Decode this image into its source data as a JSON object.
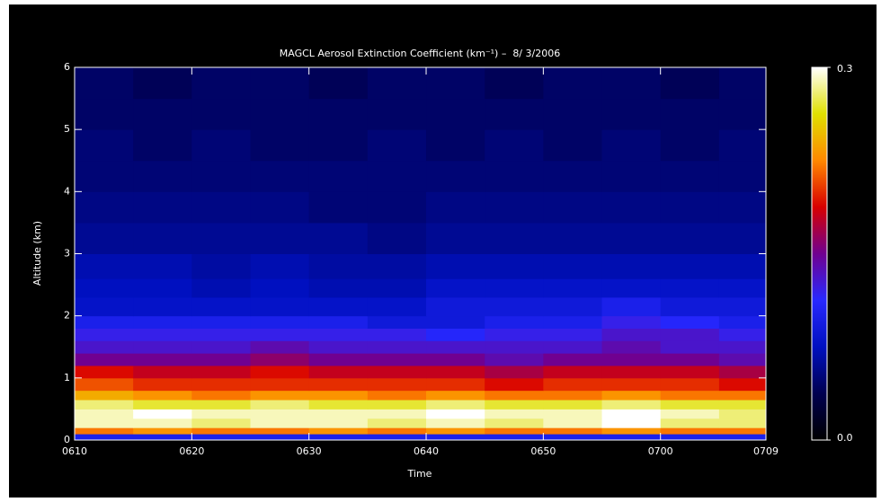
{
  "chart_data": {
    "type": "heatmap",
    "title": "MAGCL Aerosol Extinction Coefficient (km⁻¹) –  8/ 3/2006",
    "x_label": "Time",
    "y_label": "Altitude (km)",
    "xlim": [
      370,
      429
    ],
    "xticks": [
      {
        "value": 370,
        "label": "0610"
      },
      {
        "value": 380,
        "label": "0620"
      },
      {
        "value": 390,
        "label": "0630"
      },
      {
        "value": 400,
        "label": "0640"
      },
      {
        "value": 410,
        "label": "0650"
      },
      {
        "value": 420,
        "label": "0700"
      },
      {
        "value": 429,
        "label": "0709"
      }
    ],
    "ylim": [
      0,
      6
    ],
    "yticks": [
      0,
      1,
      2,
      3,
      4,
      5,
      6
    ],
    "xbins": [
      370,
      375,
      380,
      385,
      390,
      395,
      400,
      405,
      410,
      415,
      420,
      425,
      429
    ],
    "ybins": [
      0,
      0.1,
      0.2,
      0.35,
      0.5,
      0.65,
      0.8,
      1.0,
      1.2,
      1.4,
      1.6,
      1.8,
      2.0,
      2.3,
      2.6,
      3.0,
      3.5,
      4.0,
      4.5,
      5.0,
      5.5,
      6.0
    ],
    "z": [
      [
        0.1,
        0.1,
        0.1,
        0.1,
        0.1,
        0.1,
        0.1,
        0.1,
        0.1,
        0.1,
        0.1,
        0.1
      ],
      [
        0.22,
        0.23,
        0.22,
        0.22,
        0.23,
        0.22,
        0.23,
        0.22,
        0.22,
        0.23,
        0.22,
        0.22
      ],
      [
        0.29,
        0.29,
        0.28,
        0.29,
        0.29,
        0.28,
        0.29,
        0.28,
        0.29,
        0.3,
        0.28,
        0.28
      ],
      [
        0.29,
        0.3,
        0.29,
        0.29,
        0.29,
        0.29,
        0.3,
        0.29,
        0.29,
        0.3,
        0.29,
        0.28
      ],
      [
        0.28,
        0.27,
        0.27,
        0.28,
        0.27,
        0.27,
        0.28,
        0.27,
        0.27,
        0.28,
        0.27,
        0.27
      ],
      [
        0.24,
        0.23,
        0.22,
        0.23,
        0.23,
        0.22,
        0.23,
        0.22,
        0.22,
        0.23,
        0.22,
        0.22
      ],
      [
        0.21,
        0.2,
        0.2,
        0.2,
        0.2,
        0.2,
        0.2,
        0.19,
        0.2,
        0.2,
        0.2,
        0.19
      ],
      [
        0.19,
        0.18,
        0.18,
        0.19,
        0.18,
        0.18,
        0.18,
        0.17,
        0.18,
        0.18,
        0.18,
        0.17
      ],
      [
        0.15,
        0.15,
        0.15,
        0.16,
        0.15,
        0.15,
        0.15,
        0.14,
        0.15,
        0.15,
        0.15,
        0.14
      ],
      [
        0.13,
        0.13,
        0.13,
        0.14,
        0.13,
        0.13,
        0.13,
        0.13,
        0.13,
        0.14,
        0.13,
        0.13
      ],
      [
        0.12,
        0.12,
        0.12,
        0.12,
        0.12,
        0.12,
        0.11,
        0.12,
        0.12,
        0.13,
        0.13,
        0.12
      ],
      [
        0.1,
        0.1,
        0.1,
        0.1,
        0.1,
        0.09,
        0.09,
        0.1,
        0.1,
        0.12,
        0.11,
        0.1
      ],
      [
        0.08,
        0.08,
        0.08,
        0.08,
        0.08,
        0.08,
        0.09,
        0.09,
        0.09,
        0.1,
        0.09,
        0.09
      ],
      [
        0.075,
        0.075,
        0.07,
        0.075,
        0.07,
        0.07,
        0.08,
        0.08,
        0.08,
        0.08,
        0.08,
        0.08
      ],
      [
        0.07,
        0.07,
        0.065,
        0.07,
        0.065,
        0.065,
        0.07,
        0.07,
        0.07,
        0.07,
        0.07,
        0.07
      ],
      [
        0.06,
        0.06,
        0.06,
        0.06,
        0.06,
        0.055,
        0.06,
        0.06,
        0.06,
        0.06,
        0.06,
        0.06
      ],
      [
        0.055,
        0.055,
        0.055,
        0.055,
        0.05,
        0.05,
        0.055,
        0.055,
        0.055,
        0.055,
        0.055,
        0.055
      ],
      [
        0.05,
        0.05,
        0.05,
        0.05,
        0.05,
        0.05,
        0.05,
        0.05,
        0.05,
        0.05,
        0.05,
        0.05
      ],
      [
        0.05,
        0.045,
        0.05,
        0.045,
        0.045,
        0.05,
        0.045,
        0.05,
        0.045,
        0.05,
        0.045,
        0.05
      ],
      [
        0.045,
        0.045,
        0.045,
        0.045,
        0.045,
        0.045,
        0.045,
        0.045,
        0.045,
        0.045,
        0.045,
        0.045
      ],
      [
        0.045,
        0.04,
        0.045,
        0.045,
        0.04,
        0.045,
        0.045,
        0.04,
        0.045,
        0.045,
        0.04,
        0.045
      ]
    ],
    "zlim": [
      0,
      0.3
    ],
    "zticks": [
      {
        "value": 0,
        "label": "0.0"
      },
      {
        "value": 0.3,
        "label": "0.3"
      }
    ],
    "colormap": [
      "#000000",
      "#000050",
      "#0010c0",
      "#2828ff",
      "#700090",
      "#d80000",
      "#ff8800",
      "#e0e000",
      "#ffffff"
    ]
  }
}
